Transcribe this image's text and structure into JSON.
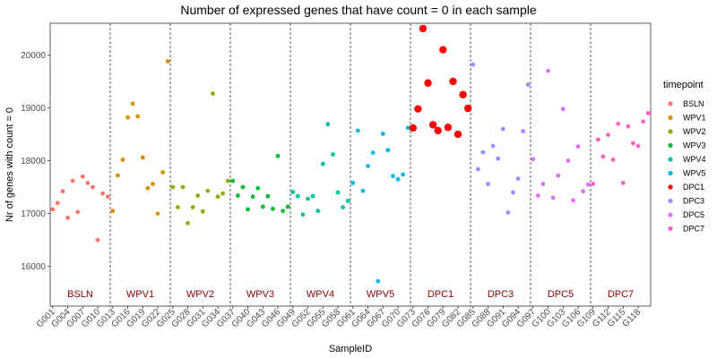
{
  "chart_data": {
    "type": "scatter",
    "title": "Number of expressed genes that have count = 0 in each sample",
    "xlabel": "SampleID",
    "ylabel": "Nr of genes with count = 0",
    "ylim": [
      15250,
      20600
    ],
    "yticks": [
      16000,
      17000,
      18000,
      19000,
      20000
    ],
    "grid": false,
    "legend_position": "right",
    "legend_title": "timepoint",
    "legend": [
      {
        "name": "BSLN",
        "color": "#F8766D"
      },
      {
        "name": "WPV1",
        "color": "#D39200"
      },
      {
        "name": "WPV2",
        "color": "#93AA00"
      },
      {
        "name": "WPV3",
        "color": "#00BA38"
      },
      {
        "name": "WPV4",
        "color": "#00C19F"
      },
      {
        "name": "WPV5",
        "color": "#00B9E3"
      },
      {
        "name": "DPC1",
        "color": "#FF0000"
      },
      {
        "name": "DPC3",
        "color": "#9590FF"
      },
      {
        "name": "DPC5",
        "color": "#DB72FB"
      },
      {
        "name": "DPC7",
        "color": "#FF61C3"
      }
    ],
    "n_samples": 120,
    "xtick_labels": [
      "G001",
      "G004",
      "G007",
      "G010",
      "G013",
      "G016",
      "G019",
      "G022",
      "G025",
      "G028",
      "G031",
      "G034",
      "G037",
      "G040",
      "G043",
      "G046",
      "G049",
      "G052",
      "G055",
      "G058",
      "G061",
      "G064",
      "G067",
      "G070",
      "G073",
      "G076",
      "G079",
      "G082",
      "G085",
      "G088",
      "G091",
      "G094",
      "G097",
      "G100",
      "G103",
      "G106",
      "G109",
      "G112",
      "G115",
      "G118"
    ],
    "groups": [
      {
        "label": "BSLN",
        "start": 0,
        "end": 12
      },
      {
        "label": "WPV1",
        "start": 12,
        "end": 24
      },
      {
        "label": "WPV2",
        "start": 24,
        "end": 36
      },
      {
        "label": "WPV3",
        "start": 36,
        "end": 48
      },
      {
        "label": "WPV4",
        "start": 48,
        "end": 60
      },
      {
        "label": "WPV5",
        "start": 60,
        "end": 72
      },
      {
        "label": "DPC1",
        "start": 72,
        "end": 84
      },
      {
        "label": "DPC3",
        "start": 84,
        "end": 96
      },
      {
        "label": "DPC5",
        "start": 96,
        "end": 108
      },
      {
        "label": "DPC7",
        "start": 108,
        "end": 120
      }
    ],
    "series": [
      {
        "name": "BSLN",
        "values": [
          17080,
          17200,
          17420,
          16920,
          17620,
          17030,
          17700,
          17580,
          17500,
          16500,
          17380,
          17320
        ]
      },
      {
        "name": "WPV1",
        "values": [
          17050,
          17720,
          18020,
          18820,
          19080,
          18840,
          18060,
          17480,
          17560,
          17000,
          17780,
          19880
        ]
      },
      {
        "name": "WPV2",
        "values": [
          17500,
          17120,
          17500,
          16820,
          17120,
          17340,
          17040,
          17430,
          19270,
          17320,
          17380,
          17620
        ]
      },
      {
        "name": "WPV3",
        "values": [
          17620,
          17340,
          17500,
          17080,
          17320,
          17480,
          17130,
          17330,
          17090,
          18090,
          17050,
          17130
        ]
      },
      {
        "name": "WPV4",
        "values": [
          17410,
          17330,
          16980,
          17280,
          17330,
          17050,
          17940,
          18690,
          18120,
          17400,
          17120,
          17240
        ]
      },
      {
        "name": "WPV5",
        "values": [
          17580,
          18570,
          17430,
          17900,
          18150,
          15720,
          18510,
          18200,
          17710,
          17650,
          17740,
          18620
        ]
      },
      {
        "name": "DPC1",
        "values": [
          18620,
          18980,
          20500,
          19470,
          18680,
          18570,
          20100,
          18630,
          19500,
          18500,
          19250,
          18990
        ]
      },
      {
        "name": "DPC3",
        "values": [
          19820,
          17840,
          18160,
          17560,
          18280,
          18040,
          18600,
          17020,
          17400,
          17660,
          18560,
          19440
        ]
      },
      {
        "name": "DPC5",
        "values": [
          18030,
          17340,
          17560,
          19700,
          17300,
          17720,
          18980,
          18000,
          17250,
          18270,
          17420,
          17550
        ]
      },
      {
        "name": "DPC7",
        "values": [
          17560,
          18400,
          18080,
          18490,
          18020,
          18700,
          17580,
          18650,
          18330,
          18280,
          18740,
          18900
        ]
      }
    ],
    "highlight_series": "DPC1"
  }
}
